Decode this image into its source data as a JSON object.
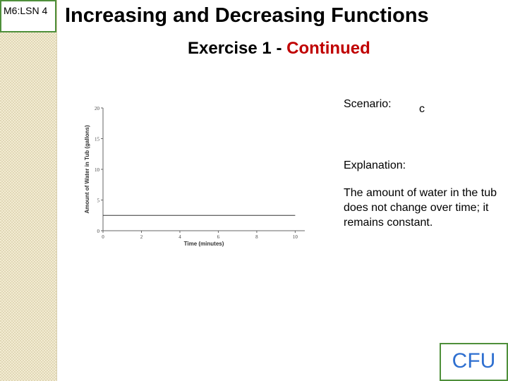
{
  "lesson": {
    "badge": "M6:LSN 4"
  },
  "header": {
    "title": "Increasing and Decreasing Functions",
    "subtitle_prefix": "Exercise 1 - ",
    "subtitle_highlight": "Continued"
  },
  "scenario": {
    "label": "Scenario:",
    "value": "c"
  },
  "explanation": {
    "label": "Explanation:",
    "text": "The amount of water in the tub does not change over time; it remains constant."
  },
  "cfu": {
    "label": "CFU"
  },
  "colors": {
    "accent_red": "#c00000",
    "badge_border": "#4e8f3a",
    "cfu_text": "#2e6fd0"
  },
  "chart_data": {
    "type": "line",
    "title": "",
    "xlabel": "Time (minutes)",
    "ylabel": "Amount of Water in Tub (gallons)",
    "xlim": [
      0,
      10.5
    ],
    "ylim": [
      0,
      20
    ],
    "xticks": [
      0,
      2,
      4,
      6,
      8,
      10
    ],
    "yticks": [
      0,
      5,
      10,
      15,
      20
    ],
    "x_tick_labels": [
      "0",
      "2",
      "4",
      "6",
      "8",
      "10"
    ],
    "y_tick_labels": [
      "0",
      "5",
      "10",
      "15",
      "20"
    ],
    "grid": false,
    "series": [
      {
        "x": [
          0,
          10
        ],
        "y": [
          2.5,
          2.5
        ]
      }
    ]
  }
}
